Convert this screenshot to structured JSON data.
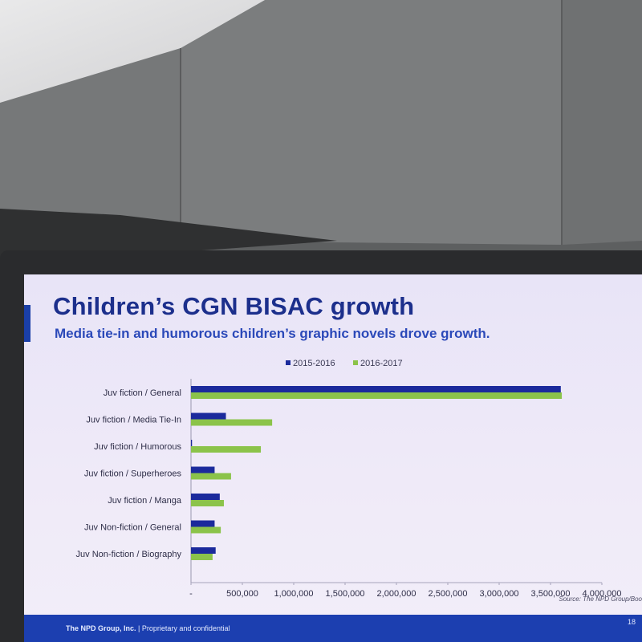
{
  "slide": {
    "title": "Children’s CGN BISAC growth",
    "subtitle": "Media tie-in and humorous children’s graphic novels drove growth.",
    "source": "Source: The NPD Group/Boo",
    "footer_company": "The NPD Group, Inc.",
    "footer_separator": "|",
    "footer_note": "Proprietary and confidential",
    "page_number": "18"
  },
  "colors": {
    "series_2015_2016": "#1b2a9c",
    "series_2016_2017": "#8bc34a",
    "title": "#1c2f8c",
    "footer": "#1c3fb0"
  },
  "chart_data": {
    "type": "bar",
    "orientation": "horizontal",
    "title": "",
    "xlabel": "",
    "ylabel": "",
    "categories": [
      "Juv fiction / General",
      "Juv fiction / Media Tie-In",
      "Juv fiction / Humorous",
      "Juv fiction / Superheroes",
      "Juv fiction / Manga",
      "Juv Non-fiction / General",
      "Juv Non-fiction / Biography"
    ],
    "series": [
      {
        "name": "2015-2016",
        "values": [
          3600000,
          340000,
          10000,
          230000,
          280000,
          230000,
          240000
        ]
      },
      {
        "name": "2016-2017",
        "values": [
          3610000,
          790000,
          680000,
          390000,
          320000,
          290000,
          210000
        ]
      }
    ],
    "xlim": [
      0,
      4000000
    ],
    "x_ticks": [
      "-",
      "500,000",
      "1,000,000",
      "1,500,000",
      "2,000,000",
      "2,500,000",
      "3,000,000",
      "3,500,000",
      "4,000,000"
    ],
    "legend_position": "top",
    "grid": false
  }
}
